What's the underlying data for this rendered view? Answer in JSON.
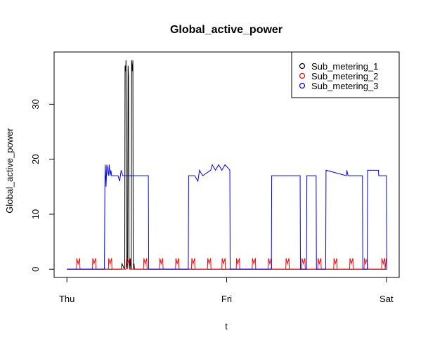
{
  "chart_data": {
    "type": "line",
    "title": "Global_active_power",
    "xlabel": "t",
    "ylabel": "Global_active_power",
    "x_ticks": [
      {
        "value": 0,
        "label": "Thu"
      },
      {
        "value": 1,
        "label": "Fri"
      },
      {
        "value": 2,
        "label": "Sat"
      }
    ],
    "xlim": [
      -0.08,
      2.08
    ],
    "y_ticks": [
      0,
      10,
      20,
      30
    ],
    "ylim": [
      -1.5,
      39.5
    ],
    "legend_position": "top-right",
    "grid": false,
    "series": [
      {
        "name": "Sub_metering_1",
        "color": "#000000",
        "x": [
          0,
          0.34,
          0.345,
          0.36,
          0.362,
          0.364,
          0.368,
          0.37,
          0.373,
          0.375,
          0.378,
          0.38,
          0.383,
          0.386,
          0.389,
          0.392,
          0.396,
          0.4,
          0.403,
          0.405,
          0.41,
          0.413,
          0.415,
          0.418,
          0.42,
          0.423,
          0.425,
          0.427,
          0.43,
          0.44,
          2
        ],
        "y": [
          0,
          0,
          1,
          0,
          1,
          37,
          36,
          38,
          1,
          1,
          0,
          2,
          37,
          35,
          1,
          0,
          2,
          0,
          0,
          38,
          36,
          38,
          2,
          0,
          1,
          0,
          0,
          0,
          0,
          0,
          0
        ]
      },
      {
        "name": "Sub_metering_2",
        "color": "#ff0000",
        "x": [
          0,
          0.06,
          0.062,
          0.07,
          0.08,
          0.082,
          0.16,
          0.162,
          0.17,
          0.18,
          0.182,
          0.26,
          0.262,
          0.27,
          0.28,
          0.282,
          0.37,
          0.372,
          0.38,
          0.39,
          0.392,
          0.48,
          0.482,
          0.49,
          0.5,
          0.502,
          0.58,
          0.582,
          0.59,
          0.6,
          0.602,
          0.68,
          0.682,
          0.69,
          0.7,
          0.702,
          0.78,
          0.782,
          0.79,
          0.8,
          0.802,
          0.88,
          0.882,
          0.89,
          0.9,
          0.902,
          0.97,
          0.972,
          0.98,
          0.99,
          0.992,
          1.06,
          1.062,
          1.07,
          1.08,
          1.082,
          1.16,
          1.162,
          1.17,
          1.18,
          1.182,
          1.26,
          1.262,
          1.27,
          1.28,
          1.282,
          1.37,
          1.372,
          1.38,
          1.39,
          1.392,
          1.47,
          1.472,
          1.48,
          1.49,
          1.492,
          1.57,
          1.572,
          1.58,
          1.59,
          1.592,
          1.67,
          1.672,
          1.68,
          1.69,
          1.692,
          1.77,
          1.772,
          1.78,
          1.79,
          1.792,
          1.86,
          1.862,
          1.87,
          1.88,
          1.882,
          1.97,
          1.972,
          1.98,
          1.99,
          1.992,
          2
        ],
        "y": [
          0,
          0,
          2,
          1,
          2,
          0,
          0,
          2,
          1,
          2,
          0,
          0,
          2,
          1,
          2,
          0,
          0,
          2,
          1,
          2,
          0,
          0,
          2,
          1,
          2,
          0,
          0,
          2,
          1,
          2,
          0,
          0,
          2,
          1,
          2,
          0,
          0,
          2,
          1,
          2,
          0,
          0,
          2,
          1,
          2,
          0,
          0,
          2,
          1,
          2,
          0,
          0,
          2,
          1,
          2,
          0,
          0,
          2,
          1,
          2,
          0,
          0,
          2,
          1,
          2,
          0,
          0,
          2,
          1,
          2,
          0,
          0,
          2,
          1,
          2,
          0,
          0,
          2,
          1,
          2,
          0,
          0,
          2,
          1,
          2,
          0,
          0,
          2,
          1,
          2,
          0,
          0,
          2,
          1,
          2,
          0,
          0,
          2,
          1,
          2,
          0,
          2
        ]
      },
      {
        "name": "Sub_metering_3",
        "color": "#0000ff",
        "x": [
          0,
          0.235,
          0.238,
          0.24,
          0.245,
          0.25,
          0.255,
          0.26,
          0.265,
          0.27,
          0.275,
          0.28,
          0.3,
          0.32,
          0.33,
          0.335,
          0.34,
          0.35,
          0.36,
          0.38,
          0.4,
          0.42,
          0.45,
          0.5,
          0.51,
          0.512,
          0.76,
          0.762,
          0.8,
          0.82,
          0.825,
          0.83,
          0.85,
          0.9,
          0.91,
          0.93,
          0.95,
          0.97,
          0.99,
          1.02,
          1.022,
          1.28,
          1.282,
          1.35,
          1.4,
          1.45,
          1.46,
          1.462,
          1.5,
          1.502,
          1.56,
          1.562,
          1.62,
          1.622,
          1.75,
          1.752,
          1.76,
          1.8,
          1.85,
          1.852,
          1.88,
          1.882,
          1.95,
          1.952,
          1.96,
          2.0,
          2.002,
          2
        ],
        "y": [
          0,
          0,
          16,
          19,
          15,
          19,
          18,
          17,
          19,
          17,
          18,
          17,
          17,
          17,
          16,
          17,
          18,
          17,
          17,
          17,
          17,
          17,
          17,
          17,
          17,
          0,
          0,
          17,
          17,
          16,
          17,
          18,
          17,
          18,
          19,
          18,
          19,
          18,
          19,
          18,
          0,
          0,
          17,
          17,
          17,
          17,
          17,
          0,
          0,
          17,
          17,
          0,
          0,
          18,
          17,
          18,
          17,
          17,
          17,
          0,
          0,
          18,
          18,
          17,
          17,
          17,
          0,
          0
        ]
      }
    ]
  }
}
